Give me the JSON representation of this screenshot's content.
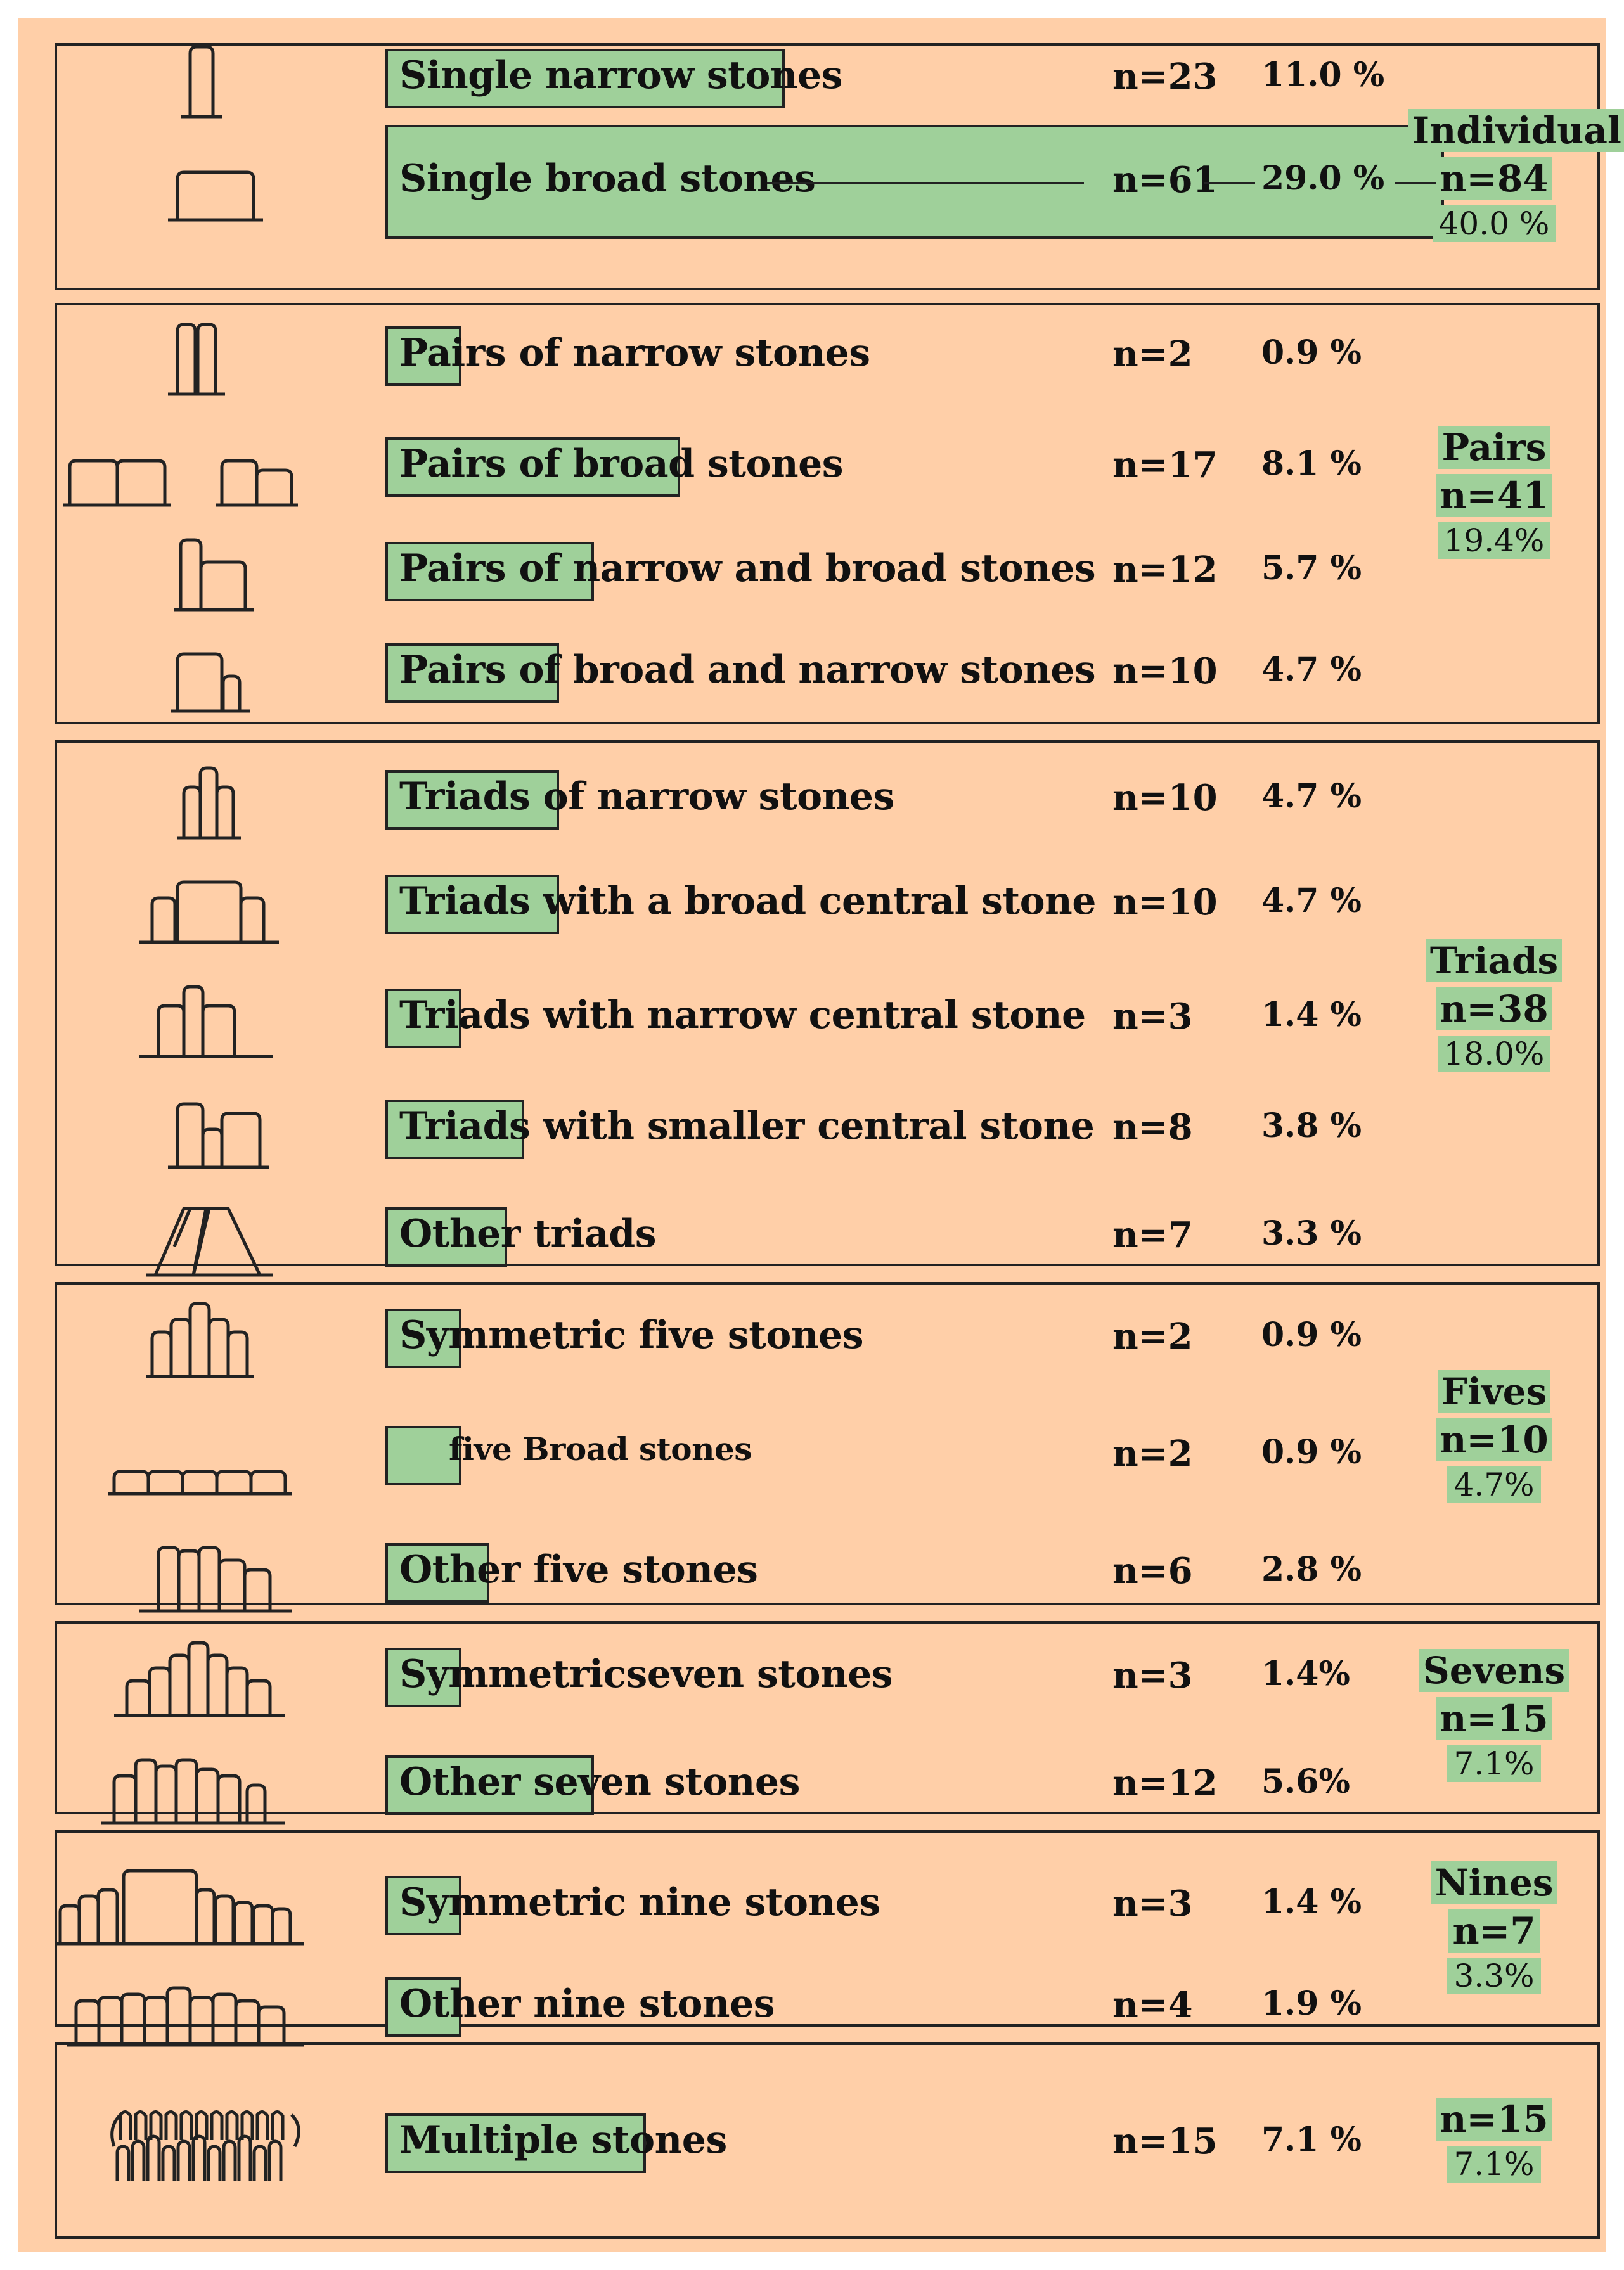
{
  "chart_data": {
    "type": "table",
    "groups": [
      {
        "name": "Individual",
        "n": "n=84",
        "pct": "40.0 %",
        "rows": [
          {
            "label": "Single narrow stones",
            "n": "n=23",
            "pct": "11.0 %",
            "value": 23,
            "icon": "single-narrow-stone-icon"
          },
          {
            "label": "Single broad stones",
            "n": "n=61",
            "pct": "29.0 %",
            "value": 61,
            "icon": "single-broad-stone-icon"
          }
        ]
      },
      {
        "name": "Pairs",
        "n": "n=41",
        "pct": "19.4%",
        "rows": [
          {
            "label": "Pairs of narrow stones",
            "n": "n=2",
            "pct": "0.9 %",
            "value": 2,
            "icon": "pair-narrow-stones-icon"
          },
          {
            "label": "Pairs of broad stones",
            "n": "n=17",
            "pct": "8.1 %",
            "value": 17,
            "icon": "pair-broad-stones-icon"
          },
          {
            "label": "Pairs of narrow and broad stones",
            "n": "n=12",
            "pct": "5.7 %",
            "value": 12,
            "icon": "pair-narrow-broad-icon"
          },
          {
            "label": "Pairs of broad and narrow stones",
            "n": "n=10",
            "pct": "4.7 %",
            "value": 10,
            "icon": "pair-broad-narrow-icon"
          }
        ]
      },
      {
        "name": "Triads",
        "n": "n=38",
        "pct": "18.0%",
        "rows": [
          {
            "label": "Triads of narrow stones",
            "n": "n=10",
            "pct": "4.7 %",
            "value": 10,
            "icon": "triad-narrow-icon"
          },
          {
            "label": "Triads with a broad central stone",
            "n": "n=10",
            "pct": "4.7 %",
            "value": 10,
            "icon": "triad-broad-central-icon"
          },
          {
            "label": "Triads with  narrow central stone",
            "n": "n=3",
            "pct": "1.4 %",
            "value": 3,
            "icon": "triad-narrow-central-icon"
          },
          {
            "label": "Triads with smaller central stone",
            "n": "n=8",
            "pct": "3.8 %",
            "value": 8,
            "icon": "triad-smaller-central-icon"
          },
          {
            "label": "Other triads",
            "n": "n=7",
            "pct": "3.3 %",
            "value": 7,
            "icon": "other-triad-icon"
          }
        ]
      },
      {
        "name": "Fives",
        "n": "n=10",
        "pct": "4.7%",
        "rows": [
          {
            "label": "Symmetric five stones",
            "n": "n=2",
            "pct": "0.9 %",
            "value": 2,
            "icon": "symmetric-five-icon"
          },
          {
            "label": "five Broad stones",
            "n": "n=2",
            "pct": "0.9 %",
            "value": 2,
            "icon": "five-broad-icon"
          },
          {
            "label": "Other five stones",
            "n": "n=6",
            "pct": "2.8 %",
            "value": 6,
            "icon": "other-five-icon"
          }
        ]
      },
      {
        "name": "Sevens",
        "n": "n=15",
        "pct": "7.1%",
        "rows": [
          {
            "label": "Symmetricseven stones",
            "n": "n=3",
            "pct": "1.4%",
            "value": 3,
            "icon": "symmetric-seven-icon"
          },
          {
            "label": "Other seven stones",
            "n": "n=12",
            "pct": "5.6%",
            "value": 12,
            "icon": "other-seven-icon"
          }
        ]
      },
      {
        "name": "Nines",
        "n": "n=7",
        "pct": "3.3%",
        "rows": [
          {
            "label": "Symmetric nine stones",
            "n": "n=3",
            "pct": "1.4 %",
            "value": 3,
            "icon": "symmetric-nine-icon"
          },
          {
            "label": "Other nine stones",
            "n": "n=4",
            "pct": "1.9 %",
            "value": 4,
            "icon": "other-nine-icon"
          }
        ]
      },
      {
        "name": "",
        "n": "n=15",
        "pct": "7.1%",
        "rows": [
          {
            "label": "Multiple stones",
            "n": "n=15",
            "pct": "7.1 %",
            "value": 15,
            "icon": "multiple-stones-icon"
          }
        ]
      }
    ],
    "bar_max_value": 61,
    "colors": {
      "background": "#ffcfa8",
      "bar": "#9fd09a",
      "border": "#222222"
    }
  }
}
